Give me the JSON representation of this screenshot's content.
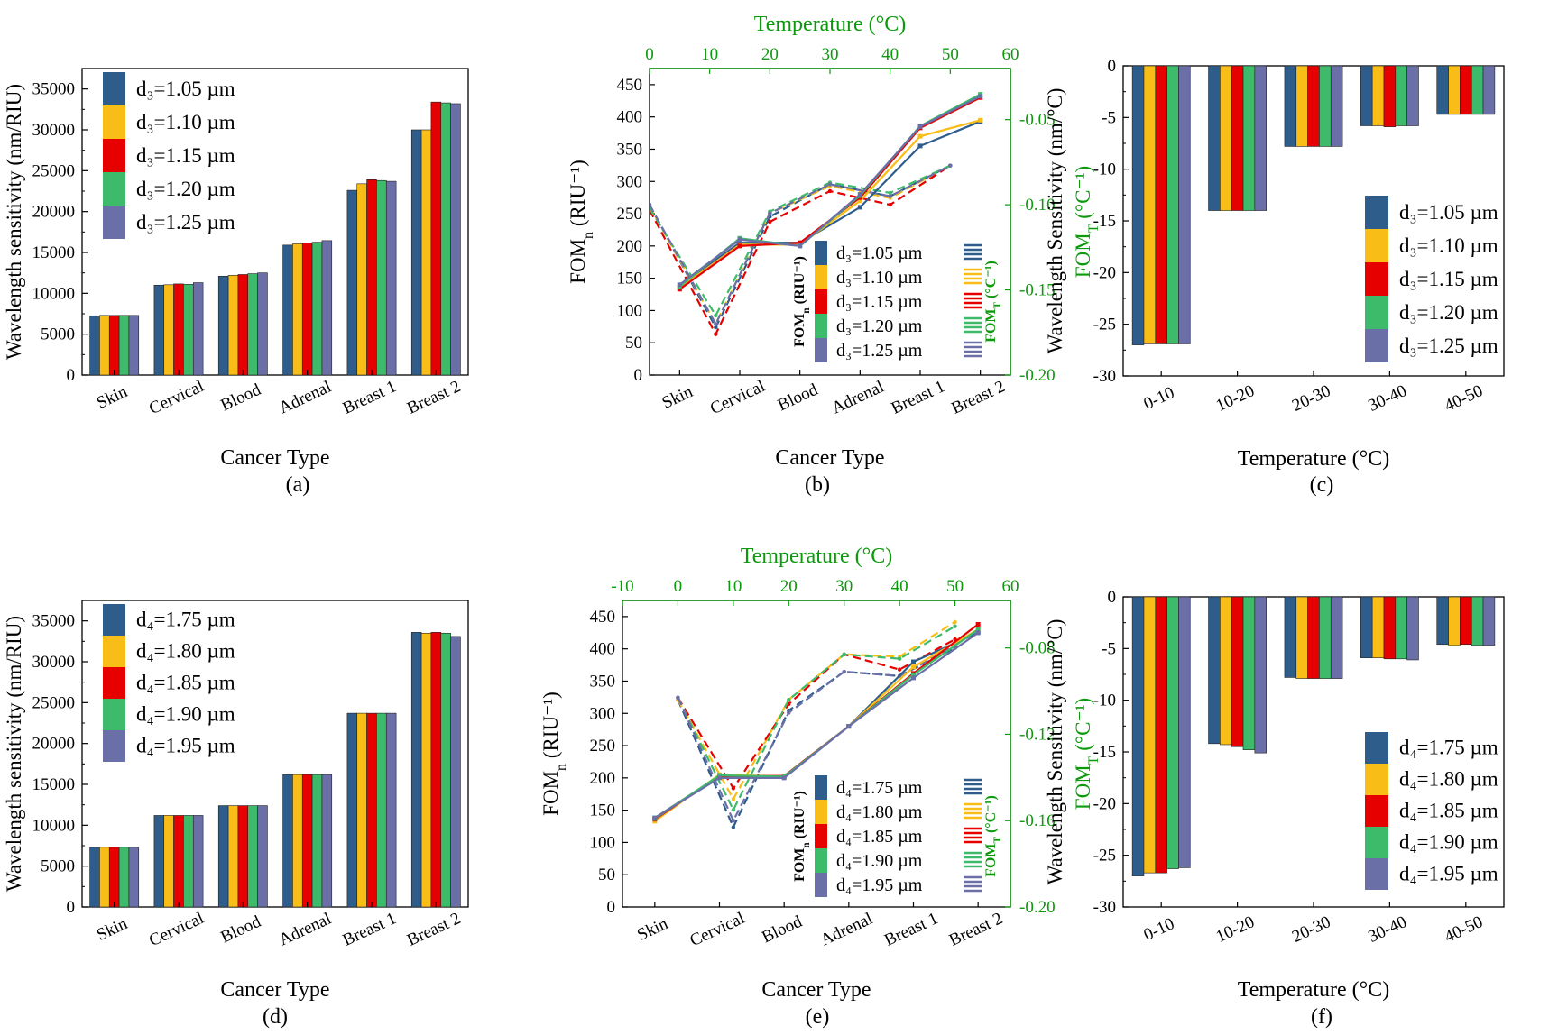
{
  "colors": {
    "s1": "#2e5d8c",
    "s2": "#f8bd16",
    "s3": "#e60000",
    "s4": "#3dbb6a",
    "s5": "#6b6fa8",
    "axis_green": "#0c9a0c"
  },
  "chart_data": [
    {
      "id": "a",
      "type": "bar",
      "panel_label": "(a)",
      "xlabel": "Cancer Type",
      "ylabel": "Wavelength sensitivity (nm/RIU)",
      "categories": [
        "Skin",
        "Cervical",
        "Blood",
        "Adrenal",
        "Breast 1",
        "Breast 2"
      ],
      "ylim": [
        0,
        37500
      ],
      "yticks": [
        0,
        5000,
        10000,
        15000,
        20000,
        25000,
        30000,
        35000
      ],
      "legend_position": "top-left",
      "series": [
        {
          "name": "d₃=1.05 µm",
          "values": [
            7250,
            11000,
            12100,
            15900,
            22600,
            30000
          ]
        },
        {
          "name": "d₃=1.10 µm",
          "values": [
            7300,
            11050,
            12200,
            16050,
            23400,
            30000
          ]
        },
        {
          "name": "d₃=1.15 µm",
          "values": [
            7300,
            11150,
            12300,
            16150,
            23900,
            33400
          ]
        },
        {
          "name": "d₃=1.20 µm",
          "values": [
            7300,
            11100,
            12400,
            16250,
            23800,
            33300
          ]
        },
        {
          "name": "d₃=1.25 µm",
          "values": [
            7300,
            11300,
            12500,
            16450,
            23700,
            33200
          ]
        }
      ]
    },
    {
      "id": "b",
      "type": "line",
      "panel_label": "(b)",
      "xlabel": "Cancer Type",
      "ylabel": "FOM",
      "ylabel_sub": "n",
      "ylabel_unit": " (RIU⁻¹)",
      "y2label": "FOM",
      "y2label_sub": "T",
      "y2label_unit": " (°C⁻¹)",
      "top_xlabel": "Temperature (°C)",
      "categories": [
        "Skin",
        "Cervical",
        "Blood",
        "Adrenal",
        "Breast 1",
        "Breast 2"
      ],
      "ylim": [
        0,
        475
      ],
      "yticks": [
        0,
        50,
        100,
        150,
        200,
        250,
        300,
        350,
        400,
        450
      ],
      "y2lim": [
        -0.2,
        -0.02
      ],
      "y2ticks": [
        -0.2,
        -0.15,
        -0.1,
        -0.05
      ],
      "y2ticklabels": [
        "-0.20",
        "-0.15",
        "-0.10",
        "-0.05"
      ],
      "top_xlim": [
        0,
        60
      ],
      "top_xticks": [
        0,
        10,
        20,
        30,
        40,
        50,
        60
      ],
      "legend_position": "bottom-right",
      "legend_mid_label_left": "FOM",
      "legend_mid_label_left_sub": "n",
      "legend_mid_label_left_unit": " (RIU⁻¹)",
      "legend_mid_label_right": "FOM",
      "legend_mid_label_right_sub": "T",
      "legend_mid_label_right_unit": " (°C⁻¹)",
      "series": [
        {
          "name": "d₃=1.05 µm",
          "values": [
            138,
            205,
            205,
            260,
            355,
            393
          ]
        },
        {
          "name": "d₃=1.10 µm",
          "values": [
            135,
            202,
            202,
            270,
            370,
            395
          ]
        },
        {
          "name": "d₃=1.15 µm",
          "values": [
            133,
            200,
            205,
            275,
            383,
            430
          ]
        },
        {
          "name": "d₃=1.20 µm",
          "values": [
            137,
            212,
            200,
            278,
            386,
            435
          ]
        },
        {
          "name": "d₃=1.25 µm",
          "values": [
            140,
            210,
            200,
            280,
            385,
            432
          ]
        }
      ],
      "temp_series": [
        {
          "name": "d₃=1.05 µm",
          "x": [
            0,
            11,
            20,
            30,
            40,
            50
          ],
          "values": [
            -0.1,
            -0.172,
            -0.107,
            -0.088,
            -0.095,
            -0.077
          ]
        },
        {
          "name": "d₃=1.10 µm",
          "x": [
            0,
            11,
            20,
            30,
            40,
            50
          ],
          "values": [
            -0.101,
            -0.17,
            -0.105,
            -0.089,
            -0.096,
            -0.077
          ]
        },
        {
          "name": "d₃=1.15 µm",
          "x": [
            0,
            11,
            20,
            30,
            40,
            50
          ],
          "values": [
            -0.103,
            -0.176,
            -0.11,
            -0.092,
            -0.1,
            -0.077
          ]
        },
        {
          "name": "d₃=1.20 µm",
          "x": [
            0,
            11,
            20,
            30,
            40,
            50
          ],
          "values": [
            -0.102,
            -0.165,
            -0.104,
            -0.087,
            -0.093,
            -0.077
          ]
        },
        {
          "name": "d₃=1.25 µm",
          "x": [
            0,
            11,
            20,
            30,
            40,
            50
          ],
          "values": [
            -0.1,
            -0.17,
            -0.105,
            -0.088,
            -0.095,
            -0.077
          ]
        }
      ]
    },
    {
      "id": "c",
      "type": "bar",
      "panel_label": "(c)",
      "xlabel": "Temperature (°C)",
      "ylabel": "Wavelength Sensitivity (nm/°C)",
      "categories": [
        "0-10",
        "10-20",
        "20-30",
        "30-40",
        "40-50"
      ],
      "ylim": [
        -30,
        0
      ],
      "yticks": [
        -30,
        -25,
        -20,
        -15,
        -10,
        -5,
        0
      ],
      "legend_position": "bottom-right",
      "series": [
        {
          "name": "d₃=1.05 µm",
          "values": [
            -27.0,
            -14.0,
            -7.8,
            -5.8,
            -4.7
          ]
        },
        {
          "name": "d₃=1.10 µm",
          "values": [
            -26.9,
            -14.0,
            -7.8,
            -5.8,
            -4.7
          ]
        },
        {
          "name": "d₃=1.15 µm",
          "values": [
            -26.9,
            -14.0,
            -7.8,
            -5.9,
            -4.7
          ]
        },
        {
          "name": "d₃=1.20 µm",
          "values": [
            -26.9,
            -14.0,
            -7.8,
            -5.8,
            -4.7
          ]
        },
        {
          "name": "d₃=1.25 µm",
          "values": [
            -26.9,
            -14.0,
            -7.8,
            -5.8,
            -4.7
          ]
        }
      ]
    },
    {
      "id": "d",
      "type": "bar",
      "panel_label": "(d)",
      "xlabel": "Cancer Type",
      "ylabel": "Wavelength sensitivity (nm/RIU)",
      "categories": [
        "Skin",
        "Cervical",
        "Blood",
        "Adrenal",
        "Breast 1",
        "Breast 2"
      ],
      "ylim": [
        0,
        37500
      ],
      "yticks": [
        0,
        5000,
        10000,
        15000,
        20000,
        25000,
        30000,
        35000
      ],
      "legend_position": "top-left",
      "series": [
        {
          "name": "d₄=1.75 µm",
          "values": [
            7300,
            11200,
            12400,
            16200,
            23700,
            33600
          ]
        },
        {
          "name": "d₄=1.80 µm",
          "values": [
            7300,
            11200,
            12400,
            16200,
            23700,
            33500
          ]
        },
        {
          "name": "d₄=1.85 µm",
          "values": [
            7300,
            11200,
            12400,
            16200,
            23700,
            33600
          ]
        },
        {
          "name": "d₄=1.90 µm",
          "values": [
            7300,
            11200,
            12400,
            16200,
            23700,
            33500
          ]
        },
        {
          "name": "d₄=1.95 µm",
          "values": [
            7300,
            11200,
            12400,
            16200,
            23700,
            33100
          ]
        }
      ]
    },
    {
      "id": "e",
      "type": "line",
      "panel_label": "(e)",
      "xlabel": "Cancer Type",
      "ylabel": "FOM",
      "ylabel_sub": "n",
      "ylabel_unit": " (RIU⁻¹)",
      "y2label": "FOM",
      "y2label_sub": "T",
      "y2label_unit": " (°C⁻¹)",
      "top_xlabel": "Temperature (°C)",
      "categories": [
        "Skin",
        "Cervical",
        "Blood",
        "Adrenal",
        "Breast 1",
        "Breast 2"
      ],
      "ylim": [
        0,
        475
      ],
      "yticks": [
        0,
        50,
        100,
        150,
        200,
        250,
        300,
        350,
        400,
        450
      ],
      "y2lim": [
        -0.2,
        -0.058
      ],
      "y2ticks": [
        -0.2,
        -0.16,
        -0.12,
        -0.08
      ],
      "y2ticklabels": [
        "-0.20",
        "-0.16",
        "-0.12",
        "-0.08"
      ],
      "top_xlim": [
        -10,
        60
      ],
      "top_xticks": [
        -10,
        0,
        10,
        20,
        30,
        40,
        50,
        60
      ],
      "legend_position": "bottom-right",
      "legend_mid_label_left": "FOM",
      "legend_mid_label_left_sub": "n",
      "legend_mid_label_left_unit": " (RIU⁻¹)",
      "legend_mid_label_right": "FOM",
      "legend_mid_label_right_sub": "T",
      "legend_mid_label_right_unit": " (°C⁻¹)",
      "series": [
        {
          "name": "d₄=1.75 µm",
          "values": [
            138,
            203,
            202,
            280,
            380,
            425
          ]
        },
        {
          "name": "d₄=1.80 µm",
          "values": [
            133,
            205,
            202,
            280,
            372,
            430
          ]
        },
        {
          "name": "d₄=1.85 µm",
          "values": [
            136,
            203,
            203,
            280,
            362,
            438
          ]
        },
        {
          "name": "d₄=1.90 µm",
          "values": [
            137,
            204,
            202,
            280,
            360,
            430
          ]
        },
        {
          "name": "d₄=1.95 µm",
          "values": [
            138,
            200,
            200,
            280,
            355,
            425
          ]
        }
      ],
      "temp_series": [
        {
          "name": "d₄=1.75 µm",
          "x": [
            0,
            10,
            20,
            30,
            40,
            50
          ],
          "values": [
            -0.104,
            -0.163,
            -0.109,
            -0.091,
            -0.093,
            -0.08
          ]
        },
        {
          "name": "d₄=1.80 µm",
          "x": [
            0,
            10,
            20,
            30,
            40,
            50
          ],
          "values": [
            -0.104,
            -0.15,
            -0.104,
            -0.083,
            -0.084,
            -0.068
          ]
        },
        {
          "name": "d₄=1.85 µm",
          "x": [
            0,
            10,
            20,
            30,
            40,
            50
          ],
          "values": [
            -0.103,
            -0.145,
            -0.106,
            -0.083,
            -0.09,
            -0.076
          ]
        },
        {
          "name": "d₄=1.90 µm",
          "x": [
            0,
            10,
            20,
            30,
            40,
            50
          ],
          "values": [
            -0.103,
            -0.155,
            -0.104,
            -0.083,
            -0.085,
            -0.07
          ]
        },
        {
          "name": "d₄=1.95 µm",
          "x": [
            0,
            10,
            20,
            30,
            40,
            50
          ],
          "values": [
            -0.103,
            -0.16,
            -0.11,
            -0.091,
            -0.093,
            -0.079
          ]
        }
      ]
    },
    {
      "id": "f",
      "type": "bar",
      "panel_label": "(f)",
      "xlabel": "Temperature (°C)",
      "ylabel": "Wavelength Sensitivity (nm/°C)",
      "categories": [
        "0-10",
        "10-20",
        "20-30",
        "30-40",
        "40-50"
      ],
      "ylim": [
        -30,
        0
      ],
      "yticks": [
        -30,
        -25,
        -20,
        -15,
        -10,
        -5,
        0
      ],
      "legend_position": "bottom-right",
      "series": [
        {
          "name": "d₄=1.75 µm",
          "values": [
            -27.0,
            -14.2,
            -7.8,
            -5.9,
            -4.6
          ]
        },
        {
          "name": "d₄=1.80 µm",
          "values": [
            -26.7,
            -14.3,
            -7.9,
            -5.9,
            -4.7
          ]
        },
        {
          "name": "d₄=1.85 µm",
          "values": [
            -26.7,
            -14.5,
            -7.9,
            -6.0,
            -4.6
          ]
        },
        {
          "name": "d₄=1.90 µm",
          "values": [
            -26.3,
            -14.8,
            -7.9,
            -6.0,
            -4.7
          ]
        },
        {
          "name": "d₄=1.95 µm",
          "values": [
            -26.2,
            -15.1,
            -7.9,
            -6.1,
            -4.7
          ]
        }
      ]
    }
  ]
}
